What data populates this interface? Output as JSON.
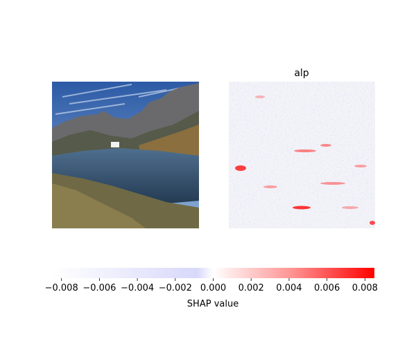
{
  "figure": {
    "panels": [
      {
        "kind": "photo",
        "title": ""
      },
      {
        "kind": "shap-heatmap",
        "title": "alp"
      }
    ]
  },
  "chart_data": {
    "type": "heatmap",
    "title": "alp",
    "colorbar": {
      "label": "SHAP value",
      "range": [
        -0.0085,
        0.0085
      ],
      "ticks": [
        -0.008,
        -0.006,
        -0.004,
        -0.002,
        0.0,
        0.002,
        0.004,
        0.006,
        0.008
      ],
      "tick_labels": [
        "−0.008",
        "−0.006",
        "−0.004",
        "−0.002",
        "0.000",
        "0.002",
        "0.004",
        "0.006",
        "0.008"
      ],
      "colormap": [
        "#0000ff",
        "#ffffff",
        "#ff0000"
      ]
    },
    "colors": {
      "positive": "#ff0d57",
      "negative": "#1e88e5"
    }
  }
}
